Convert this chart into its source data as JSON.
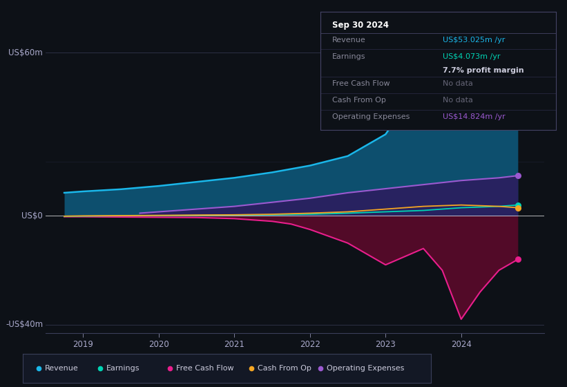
{
  "bg_color": "#0d1117",
  "plot_bg_color": "#0d1117",
  "title_box": {
    "date": "Sep 30 2024",
    "revenue": "US$53.025m /yr",
    "earnings": "US$4.073m /yr",
    "profit_margin": "7.7% profit margin",
    "free_cash_flow": "No data",
    "cash_from_op": "No data",
    "operating_expenses": "US$14.824m /yr"
  },
  "ylabel_top": "US$60m",
  "ylabel_zero": "US$0",
  "ylabel_bottom": "-US$40m",
  "colors": {
    "revenue": "#1ab7ea",
    "earnings": "#00d4b4",
    "free_cash_flow": "#e91e8c",
    "cash_from_op": "#f5a623",
    "operating_expenses": "#9b59d0"
  },
  "rev_x": [
    2018.75,
    2019.0,
    2019.5,
    2020.0,
    2020.5,
    2021.0,
    2021.5,
    2022.0,
    2022.5,
    2023.0,
    2023.25,
    2023.5,
    2023.75,
    2024.0,
    2024.5,
    2024.75
  ],
  "rev_y": [
    8.5,
    9.0,
    9.8,
    11.0,
    12.5,
    14.0,
    16.0,
    18.5,
    22.0,
    30.0,
    40.0,
    45.0,
    38.0,
    42.0,
    48.0,
    53.0
  ],
  "earn_x": [
    2018.75,
    2019.0,
    2019.5,
    2020.0,
    2020.5,
    2021.0,
    2021.5,
    2022.0,
    2022.5,
    2023.0,
    2023.5,
    2024.0,
    2024.5,
    2024.75
  ],
  "earn_y": [
    -0.2,
    -0.1,
    0.05,
    0.1,
    0.2,
    0.3,
    0.4,
    0.6,
    1.0,
    1.5,
    2.0,
    3.0,
    3.5,
    4.0
  ],
  "opex_x": [
    2019.75,
    2020.0,
    2020.5,
    2021.0,
    2021.5,
    2022.0,
    2022.5,
    2023.0,
    2023.5,
    2024.0,
    2024.5,
    2024.75
  ],
  "opex_y": [
    1.0,
    1.5,
    2.5,
    3.5,
    5.0,
    6.5,
    8.5,
    10.0,
    11.5,
    13.0,
    14.0,
    14.8
  ],
  "fcf_x": [
    2018.75,
    2019.0,
    2019.5,
    2020.0,
    2020.5,
    2021.0,
    2021.5,
    2021.75,
    2022.0,
    2022.5,
    2022.75,
    2023.0,
    2023.25,
    2023.5,
    2023.75,
    2024.0,
    2024.25,
    2024.5,
    2024.75
  ],
  "fcf_y": [
    -0.3,
    -0.3,
    -0.4,
    -0.5,
    -0.6,
    -1.0,
    -2.0,
    -3.0,
    -5.0,
    -10.0,
    -14.0,
    -18.0,
    -15.0,
    -12.0,
    -20.0,
    -38.0,
    -28.0,
    -20.0,
    -16.0
  ],
  "cfo_x": [
    2018.75,
    2019.0,
    2019.5,
    2020.0,
    2020.5,
    2021.0,
    2021.5,
    2022.0,
    2022.5,
    2023.0,
    2023.5,
    2024.0,
    2024.5,
    2024.75
  ],
  "cfo_y": [
    -0.1,
    0.0,
    0.1,
    0.2,
    0.3,
    0.4,
    0.6,
    1.0,
    1.5,
    2.5,
    3.5,
    4.0,
    3.5,
    3.0
  ],
  "xlim": [
    2018.5,
    2025.1
  ],
  "ylim": [
    -43,
    68
  ],
  "xticks": [
    2019,
    2020,
    2021,
    2022,
    2023,
    2024
  ],
  "ytick_vals": [
    60,
    0,
    -40
  ],
  "ytick_labels": [
    "US$60m",
    "US$0",
    "-US$40m"
  ]
}
